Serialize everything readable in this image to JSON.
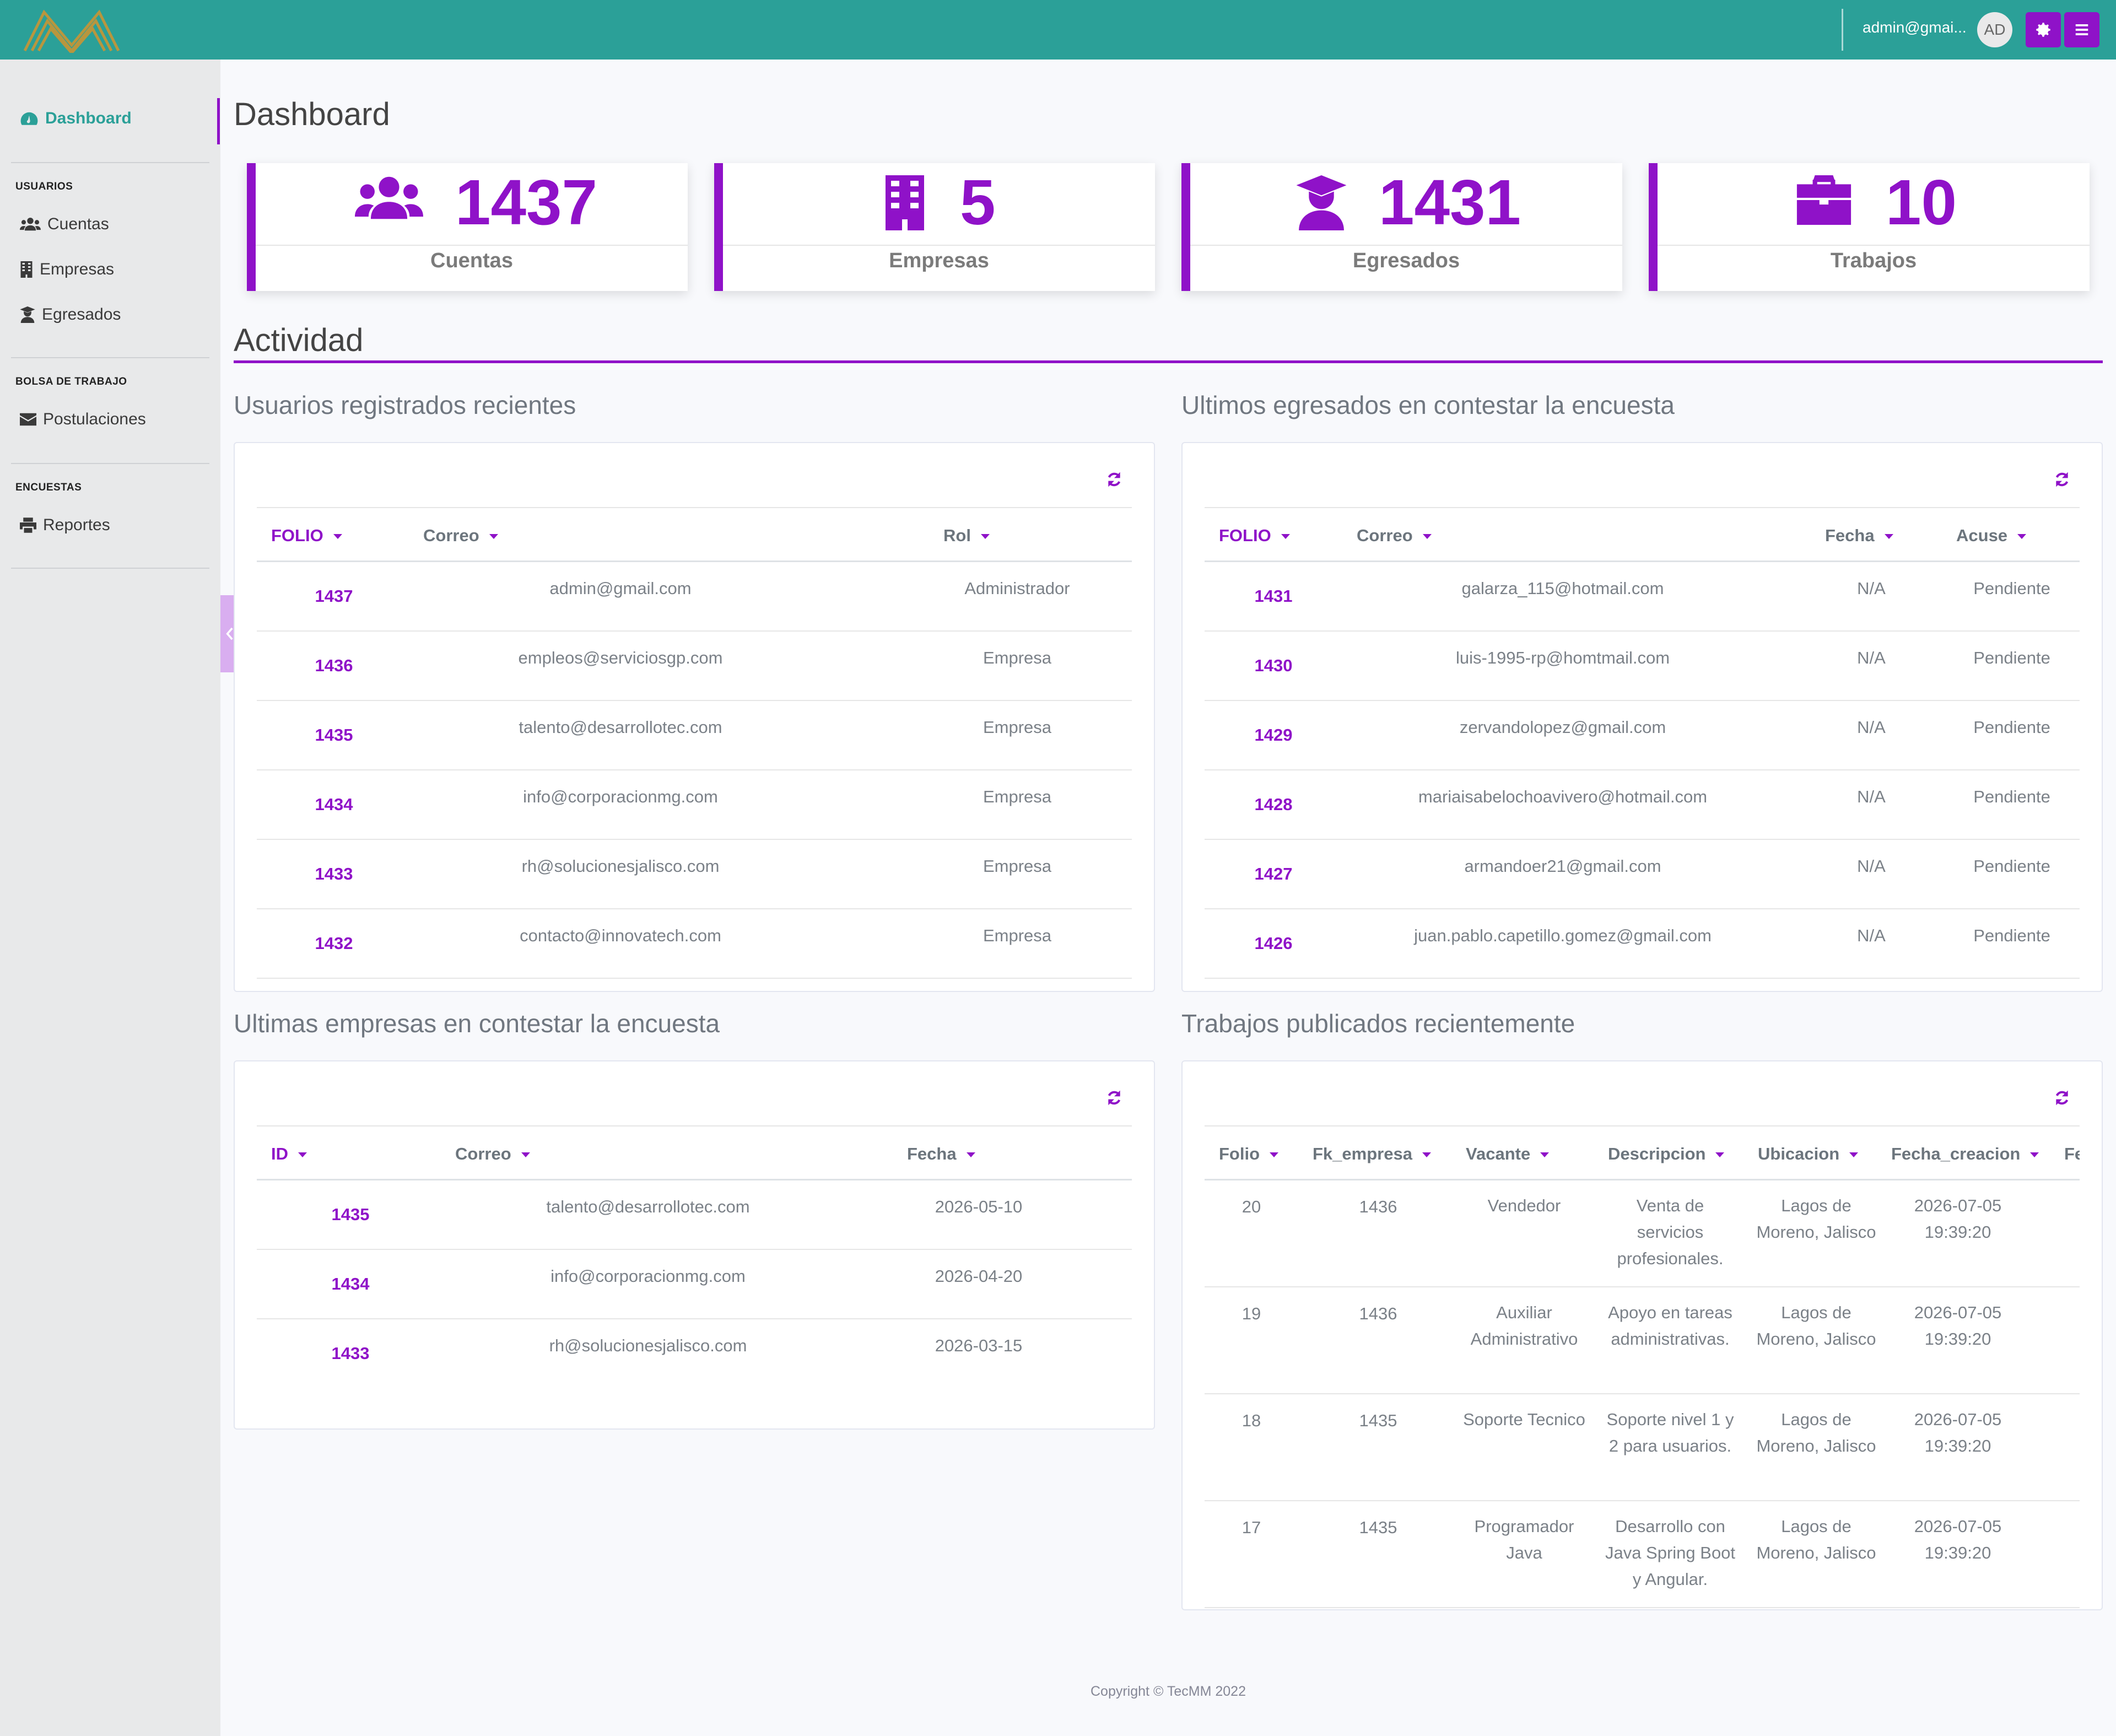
{
  "header": {
    "user_email": "admin@gmai...",
    "avatar_initials": "AD"
  },
  "sidebar": {
    "dashboard": "Dashboard",
    "section_usuarios": "USUARIOS",
    "cuentas": "Cuentas",
    "empresas": "Empresas",
    "egresados": "Egresados",
    "section_bolsa": "BOLSA DE TRABAJO",
    "postulaciones": "Postulaciones",
    "section_encuestas": "ENCUESTAS",
    "reportes": "Reportes"
  },
  "page": {
    "title": "Dashboard",
    "activity_title": "Actividad"
  },
  "stats": [
    {
      "value": "1437",
      "label": "Cuentas",
      "icon": "users-icon"
    },
    {
      "value": "5",
      "label": "Empresas",
      "icon": "building-icon"
    },
    {
      "value": "1431",
      "label": "Egresados",
      "icon": "graduate-icon"
    },
    {
      "value": "10",
      "label": "Trabajos",
      "icon": "briefcase-icon"
    }
  ],
  "usuarios": {
    "title": "Usuarios registrados recientes",
    "headers": [
      "FOLIO",
      "Correo",
      "Rol"
    ],
    "rows": [
      [
        "1437",
        "admin@gmail.com",
        "Administrador"
      ],
      [
        "1436",
        "empleos@serviciosgp.com",
        "Empresa"
      ],
      [
        "1435",
        "talento@desarrollotec.com",
        "Empresa"
      ],
      [
        "1434",
        "info@corporacionmg.com",
        "Empresa"
      ],
      [
        "1433",
        "rh@solucionesjalisco.com",
        "Empresa"
      ],
      [
        "1432",
        "contacto@innovatech.com",
        "Empresa"
      ]
    ]
  },
  "egresados": {
    "title": "Ultimos egresados en contestar la encuesta",
    "headers": [
      "FOLIO",
      "Correo",
      "Fecha",
      "Acuse"
    ],
    "rows": [
      [
        "1431",
        "galarza_115@hotmail.com",
        "N/A",
        "Pendiente"
      ],
      [
        "1430",
        "luis-1995-rp@homtmail.com",
        "N/A",
        "Pendiente"
      ],
      [
        "1429",
        "zervandolopez@gmail.com",
        "N/A",
        "Pendiente"
      ],
      [
        "1428",
        "mariaisabelochoavivero@hotmail.com",
        "N/A",
        "Pendiente"
      ],
      [
        "1427",
        "armandoer21@gmail.com",
        "N/A",
        "Pendiente"
      ],
      [
        "1426",
        "juan.pablo.capetillo.gomez@gmail.com",
        "N/A",
        "Pendiente"
      ]
    ]
  },
  "empresas": {
    "title": "Ultimas empresas en contestar la encuesta",
    "headers": [
      "ID",
      "Correo",
      "Fecha"
    ],
    "rows": [
      [
        "1435",
        "talento@desarrollotec.com",
        "2026-05-10"
      ],
      [
        "1434",
        "info@corporacionmg.com",
        "2026-04-20"
      ],
      [
        "1433",
        "rh@solucionesjalisco.com",
        "2026-03-15"
      ]
    ]
  },
  "trabajos": {
    "title": "Trabajos publicados recientemente",
    "headers": [
      "Folio",
      "Fk_empresa",
      "Vacante",
      "Descripcion",
      "Ubicacion",
      "Fecha_creacion",
      "Fe"
    ],
    "rows": [
      [
        "20",
        "1436",
        "Vendedor",
        "Venta de servicios profesionales.",
        "Lagos de Moreno, Jalisco",
        "2026-07-05 19:39:20"
      ],
      [
        "19",
        "1436",
        "Auxiliar Administrativo",
        "Apoyo en tareas administrativas.",
        "Lagos de Moreno, Jalisco",
        "2026-07-05 19:39:20"
      ],
      [
        "18",
        "1435",
        "Soporte Tecnico",
        "Soporte nivel 1 y 2 para usuarios.",
        "Lagos de Moreno, Jalisco",
        "2026-07-05 19:39:20"
      ],
      [
        "17",
        "1435",
        "Programador Java",
        "Desarrollo con Java Spring Boot y Angular.",
        "Lagos de Moreno, Jalisco",
        "2026-07-05 19:39:20"
      ]
    ]
  },
  "footer": {
    "copyright": "Copyright © TecMM 2022"
  },
  "colors": {
    "teal": "#2ba098",
    "purple": "#8f12c8"
  }
}
